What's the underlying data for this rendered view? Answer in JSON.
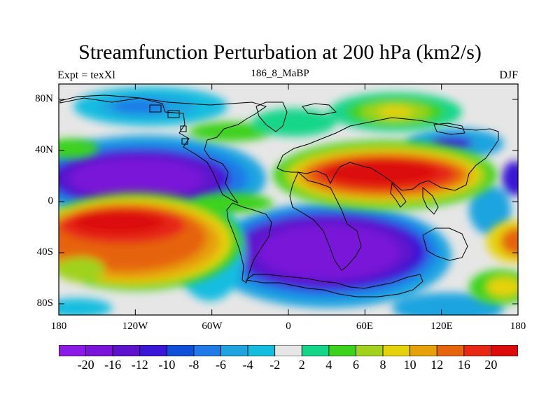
{
  "title": "Streamfunction Perturbation at 200 hPa (km2/s)",
  "left_string": "Expt = texXl",
  "center_string": "186_8_MaBP",
  "right_string": "DJF",
  "lat_labels": [
    "80N",
    "40N",
    "0",
    "40S",
    "80S"
  ],
  "lon_labels": [
    "180",
    "120W",
    "60W",
    "0",
    "60E",
    "120E",
    "180"
  ],
  "colorbar": {
    "labels": [
      "-20",
      "-16",
      "-12",
      "-10",
      "-8",
      "-6",
      "-4",
      "-2",
      "2",
      "4",
      "6",
      "8",
      "10",
      "12",
      "16",
      "20"
    ],
    "colors": [
      "#8c1ae6",
      "#7a14d8",
      "#5f12cc",
      "#3a16d6",
      "#1050d8",
      "#1f7ae8",
      "#1fa4e0",
      "#14bde0",
      "#e6e6e6",
      "#14d68a",
      "#3cd21e",
      "#a0d21e",
      "#e6d20a",
      "#e6a00a",
      "#e6640a",
      "#e62814",
      "#dc0a0a"
    ]
  },
  "colors": {
    "background": "#ffffff",
    "map_background": "#e6e6e6",
    "text": "#000000"
  }
}
